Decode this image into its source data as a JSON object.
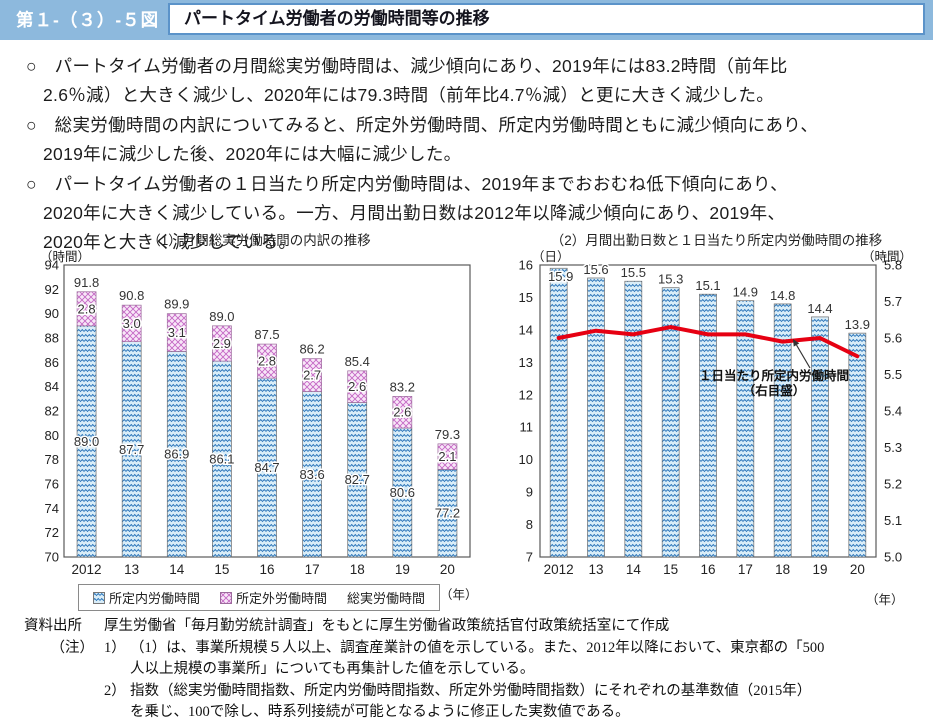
{
  "header": {
    "figure_label": "第１-（３）-５図",
    "title": "パートタイム労働者の労働時間等の推移"
  },
  "bullets": [
    "○　パートタイム労働者の月間総実労働時間は、減少傾向にあり、2019年には83.2時間（前年比\n2.6％減）と大きく減少し、2020年には79.3時間（前年比4.7％減）と更に大きく減少した。",
    "○　総実労働時間の内訳についてみると、所定外労働時間、所定内労働時間ともに減少傾向にあり、\n2019年に減少した後、2020年には大幅に減少した。",
    "○　パートタイム労働者の１日当たり所定内労働時間は、2019年までおおむね低下傾向にあり、\n2020年に大きく減少している。一方、月間出勤日数は2012年以降減少傾向にあり、2019年、\n2020年と大きく減少している。"
  ],
  "chart1": {
    "title": "（1）月間総実労働時間の内訳の推移",
    "unit_left": "（時間）",
    "year_label": "（年）",
    "legend": [
      "所定内労働時間",
      "所定外労働時間",
      "総実労働時間"
    ]
  },
  "chart2": {
    "title": "（2）月間出勤日数と１日当たり所定内労働時間の推移",
    "unit_left": "（日）",
    "unit_right": "（時間）",
    "year_label": "（年）",
    "annotation": "１日当たり所定内労働時間\n（右目盛）"
  },
  "chart_data": [
    {
      "type": "bar",
      "stacked": true,
      "title": "（1）月間総実労働時間の内訳の推移",
      "categories": [
        "2012",
        "13",
        "14",
        "15",
        "16",
        "17",
        "18",
        "19",
        "20"
      ],
      "series": [
        {
          "name": "所定内労働時間",
          "values": [
            89.0,
            87.7,
            86.9,
            86.1,
            84.7,
            83.6,
            82.7,
            80.6,
            77.2
          ]
        },
        {
          "name": "所定外労働時間",
          "values": [
            2.8,
            3.0,
            3.1,
            2.9,
            2.8,
            2.7,
            2.6,
            2.6,
            2.1
          ]
        }
      ],
      "totals": [
        91.8,
        90.8,
        89.9,
        89.0,
        87.5,
        86.2,
        85.4,
        83.2,
        79.3
      ],
      "total_name": "総実労働時間",
      "ylabel": "（時間）",
      "ylim": [
        70,
        94
      ],
      "ytick_step": 2,
      "grid": false,
      "legend_position": "bottom"
    },
    {
      "type": "bar+line",
      "title": "（2）月間出勤日数と１日当たり所定内労働時間の推移",
      "categories": [
        "2012",
        "13",
        "14",
        "15",
        "16",
        "17",
        "18",
        "19",
        "20"
      ],
      "bar_series": {
        "name": "月間出勤日数",
        "axis": "left",
        "values": [
          15.9,
          15.6,
          15.5,
          15.3,
          15.1,
          14.9,
          14.8,
          14.4,
          13.9
        ]
      },
      "line_series": {
        "name": "１日当たり所定内労働時間（右目盛）",
        "axis": "right",
        "color": "#e60012",
        "values": [
          5.6,
          5.62,
          5.61,
          5.63,
          5.61,
          5.61,
          5.59,
          5.6,
          5.55
        ]
      },
      "ylabel_left": "（日）",
      "ylabel_right": "（時間）",
      "ylim_left": [
        7,
        16
      ],
      "ytick_step_left": 1,
      "ylim_right": [
        5.0,
        5.8
      ],
      "ytick_step_right": 0.1,
      "grid": false
    }
  ],
  "footer": {
    "source_label": "資料出所",
    "source_text": "厚生労働省「毎月勤労統計調査」をもとに厚生労働省政策統括官付政策統括室にて作成",
    "note_label": "（注）",
    "notes": [
      {
        "num": "1）",
        "text": "（1）は、事業所規模５人以上、調査産業計の値を示している。また、2012年以降において、東京都の「500\n人以上規模の事業所」についても再集計した値を示している。"
      },
      {
        "num": "2）",
        "text": "指数（総実労働時間指数、所定内労働時間指数、所定外労働時間指数）にそれぞれの基準数値（2015年）\nを乗じ、100で除し、時系列接続が可能となるように修正した実数値である。"
      }
    ]
  },
  "colors": {
    "header_blue": "#8db9dd",
    "title_border": "#5b93c9",
    "bar_blue_bg": "#d9edf8",
    "bar_blue_stroke": "#1e6cb5",
    "bar_pink_bg": "#f8e7f8",
    "bar_pink_stroke": "#c467c4",
    "line_red": "#e60012",
    "plot_border": "#595959"
  }
}
